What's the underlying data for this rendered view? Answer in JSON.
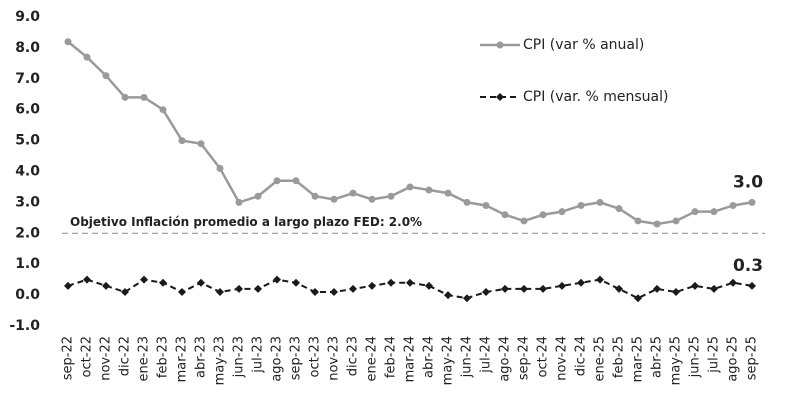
{
  "chart_data": {
    "type": "line",
    "categories": [
      "sep-22",
      "oct-22",
      "nov-22",
      "dic-22",
      "ene-23",
      "feb-23",
      "mar-23",
      "abr-23",
      "may-23",
      "jun-23",
      "jul-23",
      "ago-23",
      "sep-23",
      "oct-23",
      "nov-23",
      "dic-23",
      "ene-24",
      "feb-24",
      "mar-24",
      "abr-24",
      "may-24",
      "jun-24",
      "jul-24",
      "ago-24",
      "sep-24",
      "oct-24",
      "nov-24",
      "dic-24",
      "ene-25",
      "feb-25",
      "mar-25",
      "abr-25",
      "may-25",
      "jun-25",
      "jul-25",
      "ago-25",
      "sep-25"
    ],
    "series": [
      {
        "name": "CPI (var % anual)",
        "color": "#9a9a9a",
        "values": [
          8.2,
          7.7,
          7.1,
          6.4,
          6.4,
          6.0,
          5.0,
          4.9,
          4.1,
          3.0,
          3.2,
          3.7,
          3.7,
          3.2,
          3.1,
          3.3,
          3.1,
          3.2,
          3.5,
          3.4,
          3.3,
          3.0,
          2.9,
          2.6,
          2.4,
          2.6,
          2.7,
          2.9,
          3.0,
          2.8,
          2.4,
          2.3,
          2.4,
          2.7,
          2.7,
          2.9,
          3.0
        ]
      },
      {
        "name": "CPI (var. % mensual)",
        "color": "#1a1a1a",
        "values": [
          0.3,
          0.5,
          0.3,
          0.1,
          0.5,
          0.4,
          0.1,
          0.4,
          0.1,
          0.2,
          0.2,
          0.5,
          0.4,
          0.1,
          0.1,
          0.2,
          0.3,
          0.4,
          0.4,
          0.3,
          0.0,
          -0.1,
          0.1,
          0.2,
          0.2,
          0.2,
          0.3,
          0.4,
          0.5,
          0.2,
          -0.1,
          0.2,
          0.1,
          0.3,
          0.2,
          0.4,
          0.3
        ]
      }
    ],
    "ylim": [
      -1.0,
      9.0
    ],
    "yticks": [
      {
        "value": -1,
        "label": "-1.0"
      },
      {
        "value": 0,
        "label": "0.0"
      },
      {
        "value": 1,
        "label": "1.0"
      },
      {
        "value": 2,
        "label": "2.0"
      },
      {
        "value": 3,
        "label": "3.0"
      },
      {
        "value": 4,
        "label": "4.0"
      },
      {
        "value": 5,
        "label": "5.0"
      },
      {
        "value": 6,
        "label": "6.0"
      },
      {
        "value": 7,
        "label": "7.0"
      },
      {
        "value": 8,
        "label": "8.0"
      },
      {
        "value": 9,
        "label": "9.0"
      }
    ],
    "grid": false,
    "legend": "top-right",
    "target": {
      "label": "Objetivo Inflación promedio a largo plazo FED: 2.0%",
      "value": 2.0
    },
    "annotations": [
      "3.0",
      "0.3"
    ]
  }
}
